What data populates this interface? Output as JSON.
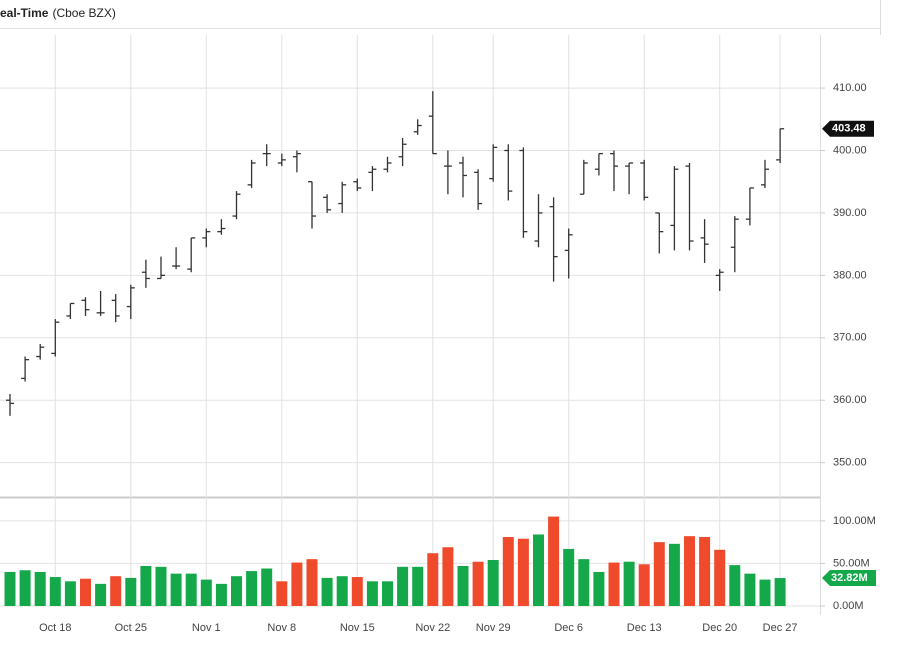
{
  "header": {
    "title": "eal-Time",
    "source": "(Cboe BZX)"
  },
  "chart_data": [
    {
      "type": "ohlc",
      "color": "#333333",
      "grid": true,
      "categories": [
        null,
        null,
        null,
        "Oct 18",
        null,
        null,
        null,
        null,
        "Oct 25",
        null,
        null,
        null,
        null,
        "Nov 1",
        null,
        null,
        null,
        null,
        "Nov 8",
        null,
        null,
        null,
        null,
        "Nov 15",
        null,
        null,
        null,
        null,
        "Nov 22",
        null,
        null,
        null,
        "Nov 29",
        null,
        null,
        null,
        null,
        "Dec 6",
        null,
        null,
        null,
        null,
        "Dec 13",
        null,
        null,
        null,
        null,
        "Dec 20",
        null,
        null,
        null,
        "Dec 27"
      ],
      "open": [
        360,
        363.5,
        367,
        367.5,
        373.5,
        376,
        374,
        376,
        375,
        380.5,
        379.5,
        381.5,
        381,
        386,
        387,
        389.5,
        394.5,
        399.5,
        398,
        399,
        395,
        392.5,
        391.5,
        395,
        396.5,
        397,
        399,
        403,
        405.5,
        397.5,
        398,
        396.5,
        395.5,
        400,
        400,
        385.5,
        391,
        384,
        393,
        397,
        399.5,
        397.5,
        398,
        390,
        388,
        397.5,
        386,
        380,
        384.5,
        389,
        394.5,
        398.5
      ],
      "high": [
        361,
        367,
        369,
        373,
        375.5,
        376.5,
        377.5,
        377,
        378.5,
        382.5,
        383,
        384.5,
        386,
        387.5,
        389,
        393.5,
        398.5,
        401,
        399.5,
        400,
        395,
        393,
        395,
        395.5,
        397.5,
        399,
        402,
        405,
        409.5,
        400,
        399,
        397,
        401,
        401,
        400.5,
        393,
        392.5,
        387.5,
        398.5,
        399.5,
        400,
        398,
        398.5,
        390,
        397.5,
        398,
        389,
        381,
        389.5,
        394,
        398.5,
        403.5
      ],
      "low": [
        357.5,
        363,
        366.5,
        367,
        373,
        373.5,
        373.5,
        372.5,
        373,
        378,
        379.5,
        381,
        380.5,
        384.5,
        386.5,
        389,
        394,
        397.5,
        397.5,
        396.5,
        387.5,
        390,
        390,
        393.5,
        393.5,
        396.5,
        397.5,
        402.5,
        399.5,
        393,
        392.5,
        390.5,
        395,
        392,
        386,
        384.5,
        379,
        379.5,
        393,
        396,
        393.5,
        393,
        392,
        383.5,
        384,
        384,
        382,
        377.5,
        380.5,
        388,
        394,
        398
      ],
      "close": [
        359.5,
        366.5,
        368.5,
        372.5,
        375.5,
        374.5,
        374,
        373.5,
        378,
        379.5,
        380,
        381.5,
        386,
        387,
        387.5,
        393,
        398,
        399.5,
        398.5,
        399.5,
        389.5,
        390.5,
        394.5,
        394,
        397,
        398,
        401,
        404,
        399.5,
        397.5,
        396,
        391.5,
        400.5,
        393.5,
        387,
        390,
        383,
        386.5,
        398,
        399.5,
        397.5,
        398,
        392.5,
        387,
        397,
        385.5,
        385,
        380.5,
        389,
        394,
        397,
        403.48
      ],
      "ylim": [
        344.5,
        418.5
      ],
      "yticks": [
        {
          "value": 350,
          "label": "350.00"
        },
        {
          "value": 360,
          "label": "360.00"
        },
        {
          "value": 370,
          "label": "370.00"
        },
        {
          "value": 380,
          "label": "380.00"
        },
        {
          "value": 390,
          "label": "390.00"
        },
        {
          "value": 400,
          "label": "400.00"
        },
        {
          "value": 410,
          "label": "410.00"
        }
      ]
    },
    {
      "type": "bar",
      "grid": true,
      "values": [
        40,
        42,
        40,
        34,
        29,
        32,
        26,
        35,
        33,
        47,
        46,
        38,
        38,
        31,
        26,
        35,
        41,
        44,
        29,
        51,
        55,
        33,
        35,
        34,
        29,
        29,
        46,
        46,
        62,
        69,
        47,
        52,
        54,
        81,
        79,
        84,
        105,
        67,
        55,
        40,
        51,
        52,
        49,
        75,
        73,
        82,
        81,
        66,
        48,
        38,
        31,
        32.82
      ],
      "value_labels": [
        null,
        null,
        null,
        null,
        null,
        null,
        null,
        null,
        null,
        null,
        null,
        null,
        null,
        null,
        null,
        null,
        null,
        null,
        null,
        null,
        null,
        null,
        null,
        null,
        null,
        null,
        null,
        null,
        null,
        null,
        null,
        null,
        null,
        null,
        null,
        null,
        null,
        null,
        null,
        null,
        null,
        null,
        null,
        null,
        null,
        null,
        null,
        null,
        null,
        null,
        null,
        "32.82M"
      ],
      "colors": [
        "#14a84b",
        "#14a84b",
        "#14a84b",
        "#14a84b",
        "#14a84b",
        "#ee4a2b",
        "#14a84b",
        "#ee4a2b",
        "#14a84b",
        "#14a84b",
        "#14a84b",
        "#14a84b",
        "#14a84b",
        "#14a84b",
        "#14a84b",
        "#14a84b",
        "#14a84b",
        "#14a84b",
        "#ee4a2b",
        "#ee4a2b",
        "#ee4a2b",
        "#14a84b",
        "#14a84b",
        "#ee4a2b",
        "#14a84b",
        "#14a84b",
        "#14a84b",
        "#14a84b",
        "#ee4a2b",
        "#ee4a2b",
        "#14a84b",
        "#ee4a2b",
        "#14a84b",
        "#ee4a2b",
        "#ee4a2b",
        "#14a84b",
        "#ee4a2b",
        "#14a84b",
        "#14a84b",
        "#14a84b",
        "#ee4a2b",
        "#14a84b",
        "#ee4a2b",
        "#ee4a2b",
        "#14a84b",
        "#ee4a2b",
        "#ee4a2b",
        "#ee4a2b",
        "#14a84b",
        "#14a84b",
        "#14a84b",
        "#14a84b"
      ],
      "ylim": [
        0,
        128
      ],
      "yticks": [
        {
          "value": 0,
          "label": "0.00M"
        },
        {
          "value": 50,
          "label": "50.00M"
        },
        {
          "value": 100,
          "label": "100.00M"
        }
      ]
    }
  ]
}
